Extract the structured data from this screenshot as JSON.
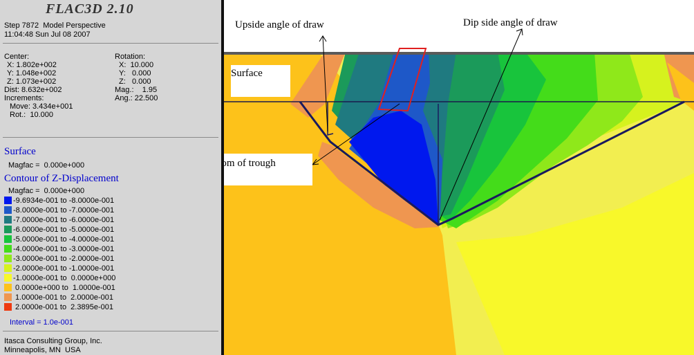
{
  "app": {
    "title": "FLAC3D 2.10",
    "step_line": "Step 7872  Model Perspective",
    "time_line": "11:04:48 Sun Jul 08 2007"
  },
  "view": {
    "center_label": "Center:",
    "center_x": "X: 1.802e+002",
    "center_y": "Y: 1.048e+002",
    "center_z": "Z: 1.073e+002",
    "dist": "Dist: 8.632e+002",
    "increments_label": "Increments:",
    "move": "Move: 3.434e+001",
    "rot": "Rot.:  10.000",
    "rotation_label": "Rotation:",
    "rot_x": "X:  10.000",
    "rot_y": "Y:   0.000",
    "rot_z": "Z:   0.000",
    "mag": "Mag.:    1.95",
    "ang": "Ang.: 22.500"
  },
  "surface": {
    "heading": "Surface",
    "magfac": "Magfac =  0.000e+000"
  },
  "contour": {
    "heading": "Contour of Z-Displacement",
    "magfac": "Magfac =  0.000e+000",
    "legend": [
      {
        "label": "-9.6934e-001 to -8.0000e-001",
        "color": "#0018ee"
      },
      {
        "label": "-8.0000e-001 to -7.0000e-001",
        "color": "#1e58c8"
      },
      {
        "label": "-7.0000e-001 to -6.0000e-001",
        "color": "#1f7a80"
      },
      {
        "label": "-6.0000e-001 to -5.0000e-001",
        "color": "#1b9a5a"
      },
      {
        "label": "-5.0000e-001 to -4.0000e-001",
        "color": "#18c43c"
      },
      {
        "label": "-4.0000e-001 to -3.0000e-001",
        "color": "#44dc1a"
      },
      {
        "label": "-3.0000e-001 to -2.0000e-001",
        "color": "#8fe81a"
      },
      {
        "label": "-2.0000e-001 to -1.0000e-001",
        "color": "#d6f21e"
      },
      {
        "label": "-1.0000e-001 to  0.0000e+000",
        "color": "#f8f82a"
      },
      {
        "label": " 0.0000e+000 to  1.0000e-001",
        "color": "#fdc21a"
      },
      {
        "label": " 1.0000e-001 to  2.0000e-001",
        "color": "#ef9650"
      },
      {
        "label": " 2.0000e-001 to  2.3895e-001",
        "color": "#ee3a10"
      }
    ],
    "interval": "Interval = 1.0e-001"
  },
  "footer": {
    "line1": "Itasca Consulting Group, Inc.",
    "line2": "Minneapolis, MN  USA"
  },
  "annotations": {
    "upside": "Upside angle of draw",
    "dip": "Dip side angle of draw",
    "surface": "Surface",
    "flat_bottom": "Flat bottom of trough"
  }
}
